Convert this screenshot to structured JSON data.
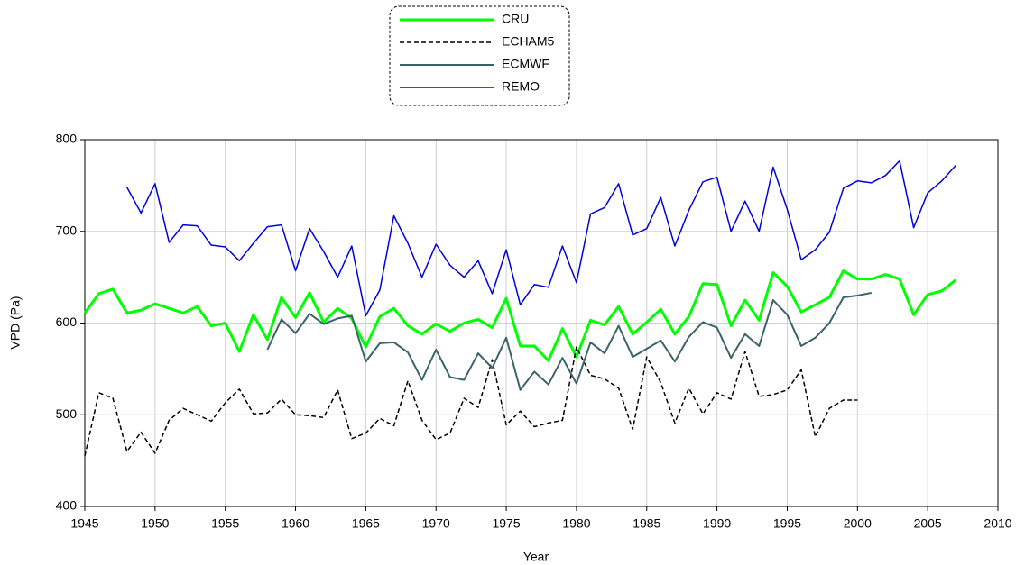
{
  "chart_data": {
    "type": "line",
    "x_label": "Year",
    "y_label": "VPD (Pa)",
    "x": [
      1945,
      1946,
      1947,
      1948,
      1949,
      1950,
      1951,
      1952,
      1953,
      1954,
      1955,
      1956,
      1957,
      1958,
      1959,
      1960,
      1961,
      1962,
      1963,
      1964,
      1965,
      1966,
      1967,
      1968,
      1969,
      1970,
      1971,
      1972,
      1973,
      1974,
      1975,
      1976,
      1977,
      1978,
      1979,
      1980,
      1981,
      1982,
      1983,
      1984,
      1985,
      1986,
      1987,
      1988,
      1989,
      1990,
      1991,
      1992,
      1993,
      1994,
      1995,
      1996,
      1997,
      1998,
      1999,
      2000,
      2001,
      2002,
      2003,
      2004,
      2005,
      2006,
      2007
    ],
    "series": [
      {
        "name": "CRU",
        "color": "#00ff00",
        "linewidth": 3,
        "line_style": "solid",
        "values": [
          611,
          632,
          637,
          611,
          614,
          621,
          616,
          611,
          618,
          597,
          600,
          569,
          609,
          582,
          628,
          606,
          633,
          601,
          616,
          605,
          574,
          607,
          616,
          597,
          588,
          599,
          591,
          600,
          604,
          595,
          627,
          575,
          575,
          559,
          594,
          563,
          603,
          598,
          618,
          588,
          601,
          615,
          588,
          607,
          643,
          642,
          597,
          625,
          603,
          655,
          640,
          612,
          620,
          628,
          657,
          648,
          648,
          653,
          648,
          609,
          631,
          635,
          647
        ]
      },
      {
        "name": "ECHAM5",
        "color": "#000000",
        "linewidth": 1.5,
        "line_style": "dashed",
        "values": [
          455,
          524,
          518,
          460,
          481,
          458,
          494,
          507,
          500,
          493,
          513,
          528,
          501,
          502,
          517,
          500,
          499,
          497,
          527,
          474,
          480,
          496,
          488,
          537,
          494,
          473,
          480,
          518,
          508,
          560,
          489,
          504,
          487,
          491,
          494,
          574,
          543,
          539,
          529,
          484,
          563,
          535,
          491,
          529,
          501,
          524,
          517,
          569,
          520,
          522,
          527,
          549,
          476,
          507,
          516,
          516,
          null,
          null,
          null,
          null,
          null,
          null,
          null
        ]
      },
      {
        "name": "ECMWF",
        "color": "#3a6468",
        "linewidth": 2,
        "line_style": "solid",
        "values": [
          null,
          null,
          null,
          null,
          null,
          null,
          null,
          null,
          null,
          null,
          null,
          null,
          null,
          571,
          604,
          589,
          610,
          599,
          605,
          608,
          558,
          578,
          579,
          568,
          538,
          571,
          541,
          538,
          567,
          551,
          584,
          527,
          547,
          533,
          562,
          534,
          579,
          567,
          597,
          563,
          572,
          581,
          558,
          585,
          601,
          595,
          562,
          588,
          575,
          625,
          609,
          575,
          584,
          600,
          628,
          630,
          633,
          null,
          null,
          null,
          null,
          null,
          null
        ]
      },
      {
        "name": "REMO",
        "color": "#0000dd",
        "linewidth": 1.5,
        "line_style": "solid",
        "values": [
          null,
          null,
          null,
          748,
          720,
          752,
          688,
          707,
          706,
          685,
          683,
          668,
          687,
          705,
          707,
          657,
          703,
          678,
          650,
          684,
          608,
          636,
          717,
          687,
          650,
          686,
          663,
          650,
          668,
          632,
          680,
          620,
          642,
          639,
          684,
          644,
          719,
          726,
          752,
          696,
          703,
          737,
          684,
          723,
          754,
          759,
          700,
          733,
          700,
          770,
          724,
          669,
          680,
          699,
          747,
          755,
          753,
          761,
          777,
          704,
          742,
          755,
          772
        ]
      }
    ],
    "xlim": [
      1945,
      2010
    ],
    "xticks": [
      1945,
      1950,
      1955,
      1960,
      1965,
      1970,
      1975,
      1980,
      1985,
      1990,
      1995,
      2000,
      2005,
      2010
    ],
    "ylim": [
      400,
      800
    ],
    "yticks": [
      400,
      500,
      600,
      700,
      800
    ],
    "grid": true,
    "legend": "top"
  }
}
